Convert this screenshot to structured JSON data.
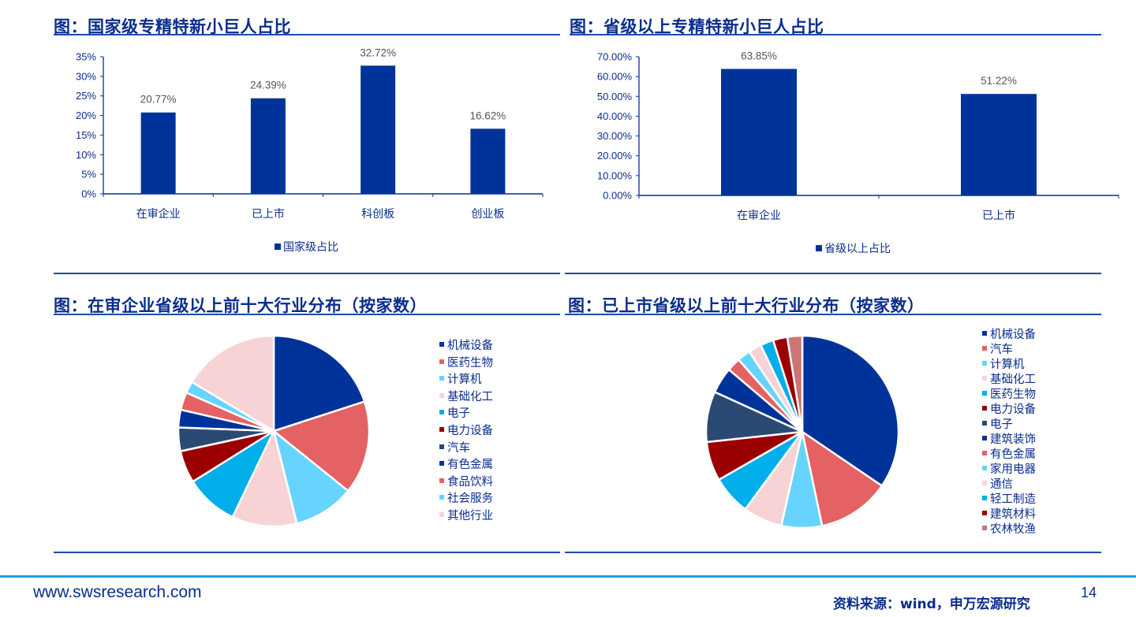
{
  "colors": {
    "bar": "#003399",
    "title": "#0a2d8c",
    "divider": "#1f4aa8",
    "footer_bar": "#1aa0e0",
    "value_label": "#555555"
  },
  "panels": {
    "top_left": {
      "title": "图：国家级专精特新小巨人占比",
      "legend": "国家级占比"
    },
    "top_right": {
      "title": "图：省级以上专精特新小巨人占比",
      "legend": "省级以上占比"
    },
    "bottom_left": {
      "title": "图：在审企业省级以上前十大行业分布（按家数）"
    },
    "bottom_right": {
      "title": "图：已上市省级以上前十大行业分布（按家数）"
    }
  },
  "chart_data": [
    {
      "type": "bar",
      "title": "图：国家级专精特新小巨人占比",
      "categories": [
        "在审企业",
        "已上市",
        "科创板",
        "创业板"
      ],
      "series": [
        {
          "name": "国家级占比",
          "values": [
            20.77,
            24.39,
            32.72,
            16.62
          ]
        }
      ],
      "value_labels": [
        "20.77%",
        "24.39%",
        "32.72%",
        "16.62%"
      ],
      "yticks": [
        "0%",
        "5%",
        "10%",
        "15%",
        "20%",
        "25%",
        "30%",
        "35%"
      ],
      "ylim": [
        0,
        35
      ],
      "xlabel": "",
      "ylabel": "",
      "grid": false,
      "legend_position": "bottom"
    },
    {
      "type": "bar",
      "title": "图：省级以上专精特新小巨人占比",
      "categories": [
        "在审企业",
        "已上市"
      ],
      "series": [
        {
          "name": "省级以上占比",
          "values": [
            63.85,
            51.22
          ]
        }
      ],
      "value_labels": [
        "63.85%",
        "51.22%"
      ],
      "yticks": [
        "0.00%",
        "10.00%",
        "20.00%",
        "30.00%",
        "40.00%",
        "50.00%",
        "60.00%",
        "70.00%"
      ],
      "ylim": [
        0,
        70
      ],
      "xlabel": "",
      "ylabel": "",
      "grid": false,
      "legend_position": "bottom"
    },
    {
      "type": "pie",
      "title": "图：在审企业省级以上前十大行业分布（按家数）",
      "labels": [
        "机械设备",
        "医药生物",
        "计算机",
        "基础化工",
        "电子",
        "电力设备",
        "汽车",
        "有色金属",
        "食品饮料",
        "社会服务",
        "其他行业"
      ],
      "values": [
        20.0,
        15.8,
        10.3,
        11.0,
        9.0,
        5.5,
        4.0,
        3.0,
        3.0,
        2.0,
        16.4
      ],
      "colors": [
        "#003399",
        "#e46264",
        "#66d4ff",
        "#f7d3d5",
        "#00aeea",
        "#9b0000",
        "#2b4a73",
        "#003399",
        "#e46264",
        "#66d4ff",
        "#f7d3d5"
      ],
      "legend_position": "right"
    },
    {
      "type": "pie",
      "title": "图：已上市省级以上前十大行业分布（按家数）",
      "labels": [
        "机械设备",
        "汽车",
        "计算机",
        "基础化工",
        "医药生物",
        "电力设备",
        "电子",
        "建筑装饰",
        "有色金属",
        "家用电器",
        "通信",
        "轻工制造",
        "建筑材料",
        "农林牧渔"
      ],
      "values": [
        34.5,
        12.2,
        6.8,
        6.6,
        6.6,
        6.6,
        8.5,
        4.4,
        2.3,
        2.2,
        2.2,
        2.2,
        2.4,
        2.5
      ],
      "colors": [
        "#003399",
        "#e46264",
        "#66d4ff",
        "#f7d3d5",
        "#00aeea",
        "#9b0000",
        "#2b4a73",
        "#003399",
        "#e46264",
        "#66d4ff",
        "#f7d3d5",
        "#00aeea",
        "#9b0000",
        "#cd7474"
      ],
      "legend_position": "right"
    }
  ],
  "footer": {
    "url": "www.swsresearch.com",
    "source": "资料来源：wind，申万宏源研究",
    "page": "14"
  }
}
